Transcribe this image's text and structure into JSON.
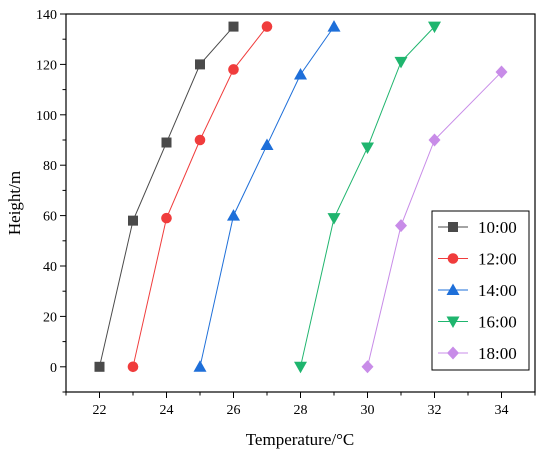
{
  "chart_data": {
    "type": "line",
    "title": "",
    "xlabel": "Temperature/°C",
    "ylabel": "Height/m",
    "xlim": [
      21,
      35
    ],
    "ylim": [
      -10,
      140
    ],
    "xticks": [
      22,
      24,
      26,
      28,
      30,
      32,
      34
    ],
    "yticks": [
      0,
      20,
      40,
      60,
      80,
      100,
      120,
      140
    ],
    "grid": false,
    "legend_position": "right",
    "series": [
      {
        "name": "10:00",
        "color": "#4a4a4a",
        "marker": "square",
        "points": [
          [
            22,
            0
          ],
          [
            23,
            58
          ],
          [
            24,
            89
          ],
          [
            25,
            120
          ],
          [
            26,
            135
          ]
        ]
      },
      {
        "name": "12:00",
        "color": "#f03c3c",
        "marker": "circle",
        "points": [
          [
            23,
            0
          ],
          [
            24,
            59
          ],
          [
            25,
            90
          ],
          [
            26,
            118
          ],
          [
            27,
            135
          ]
        ]
      },
      {
        "name": "14:00",
        "color": "#1e6fd9",
        "marker": "triangle-up",
        "points": [
          [
            25,
            0
          ],
          [
            26,
            60
          ],
          [
            27,
            88
          ],
          [
            28,
            116
          ],
          [
            29,
            135
          ]
        ]
      },
      {
        "name": "16:00",
        "color": "#1fb56e",
        "marker": "triangle-down",
        "points": [
          [
            28,
            0
          ],
          [
            29,
            59
          ],
          [
            30,
            87
          ],
          [
            31,
            121
          ],
          [
            32,
            135
          ]
        ]
      },
      {
        "name": "18:00",
        "color": "#c88ce8",
        "marker": "diamond",
        "points": [
          [
            30,
            0
          ],
          [
            31,
            56
          ],
          [
            32,
            90
          ],
          [
            34,
            117
          ]
        ]
      }
    ]
  }
}
